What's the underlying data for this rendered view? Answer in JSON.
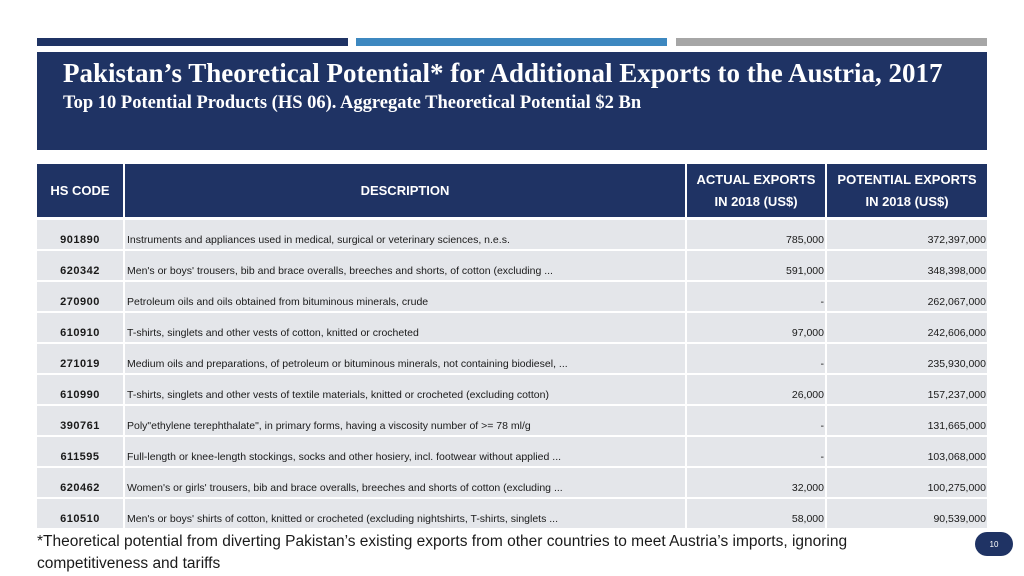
{
  "colors": {
    "navy": "#1f3364",
    "blue": "#3d88c0",
    "gray": "#a6a6a6",
    "row_bg": "#e4e6ea"
  },
  "header": {
    "title": "Pakistan’s Theoretical Potential* for Additional Exports to the Austria, 2017",
    "subtitle": "Top 10 Potential Products (HS 06). Aggregate Theoretical Potential $2 Bn"
  },
  "table": {
    "columns": [
      "HS CODE",
      "DESCRIPTION",
      "ACTUAL EXPORTS IN 2018 (US$)",
      "POTENTIAL EXPORTS IN 2018 (US$)"
    ],
    "rows": [
      {
        "code": "901890",
        "description": "Instruments and appliances used in medical, surgical or veterinary sciences, n.e.s.",
        "actual": "785,000",
        "potential": "372,397,000"
      },
      {
        "code": "620342",
        "description": "Men's or boys' trousers, bib and brace overalls, breeches and shorts, of cotton (excluding ...",
        "actual": "591,000",
        "potential": "348,398,000"
      },
      {
        "code": "270900",
        "description": "Petroleum oils and oils obtained from bituminous minerals, crude",
        "actual": "-",
        "potential": "262,067,000"
      },
      {
        "code": "610910",
        "description": "T-shirts, singlets and other vests of cotton, knitted or crocheted",
        "actual": "97,000",
        "potential": "242,606,000"
      },
      {
        "code": "271019",
        "description": "Medium oils and preparations, of petroleum or bituminous minerals, not containing biodiesel, ...",
        "actual": "-",
        "potential": "235,930,000"
      },
      {
        "code": "610990",
        "description": "T-shirts, singlets and other vests of textile materials, knitted or crocheted (excluding cotton)",
        "actual": "26,000",
        "potential": "157,237,000"
      },
      {
        "code": "390761",
        "description": "Poly\"ethylene terephthalate\", in primary forms, having a viscosity number of >= 78 ml/g",
        "actual": "-",
        "potential": "131,665,000"
      },
      {
        "code": "611595",
        "description": "Full-length or knee-length stockings, socks and other hosiery, incl. footwear without applied ...",
        "actual": "-",
        "potential": "103,068,000"
      },
      {
        "code": "620462",
        "description": "Women's or girls' trousers, bib and brace overalls, breeches and shorts of cotton (excluding ...",
        "actual": "32,000",
        "potential": "100,275,000"
      },
      {
        "code": "610510",
        "description": "Men's or boys' shirts of cotton, knitted or crocheted (excluding nightshirts, T-shirts, singlets ...",
        "actual": "58,000",
        "potential": "90,539,000"
      }
    ]
  },
  "footnote": "*Theoretical potential from diverting Pakistan’s existing exports from other countries to meet Austria’s imports, ignoring competitiveness and tariffs",
  "page_number": "10"
}
